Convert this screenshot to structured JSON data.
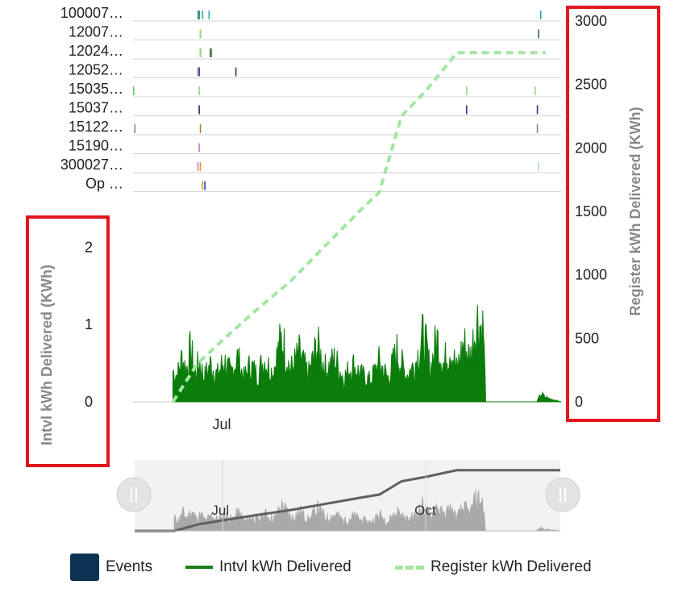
{
  "chart_data": {
    "type": "line",
    "events": {
      "rows": [
        "100007…",
        "12007…",
        "12024…",
        "12052…",
        "15035…",
        "15037…",
        "15122…",
        "15190…",
        "300027…",
        "Op …"
      ],
      "marks": [
        {
          "row": 0,
          "x": "2024-06-20",
          "color": "#3aa6b5"
        },
        {
          "row": 0,
          "x": "2024-06-20",
          "color": "#2e8b57"
        },
        {
          "row": 0,
          "x": "2024-06-21",
          "color": "#3aa6b5"
        },
        {
          "row": 0,
          "x": "2024-06-25",
          "color": "#3aa6b5"
        },
        {
          "row": 0,
          "x": "2024-11-21",
          "color": "#3aa6b5"
        },
        {
          "row": 1,
          "x": "2024-06-20",
          "color": "#2e8b57"
        },
        {
          "row": 1,
          "x": "2024-06-21",
          "color": "#9bd96b"
        },
        {
          "row": 1,
          "x": "2024-11-20",
          "color": "#2e6b2e"
        },
        {
          "row": 2,
          "x": "2024-06-20",
          "color": "#2e6b2e"
        },
        {
          "row": 2,
          "x": "2024-06-21",
          "color": "#9bd96b"
        },
        {
          "row": 2,
          "x": "2024-06-25",
          "color": "#2e6b2e"
        },
        {
          "row": 2,
          "x": "2024-06-25",
          "color": "#888888"
        },
        {
          "row": 3,
          "x": "2024-06-20",
          "color": "#c77fb9"
        },
        {
          "row": 3,
          "x": "2024-06-20",
          "color": "#2a3aa8"
        },
        {
          "row": 3,
          "x": "2024-07-06",
          "color": "#1f5e1f"
        },
        {
          "row": 4,
          "x": "2024-05-22",
          "color": "#66cc66"
        },
        {
          "row": 4,
          "x": "2024-06-20",
          "color": "#9bd96b"
        },
        {
          "row": 4,
          "x": "2024-10-18",
          "color": "#9bd96b"
        },
        {
          "row": 4,
          "x": "2024-11-19",
          "color": "#9bd96b"
        },
        {
          "row": 5,
          "x": "2024-06-20",
          "color": "#1b2a6b"
        },
        {
          "row": 5,
          "x": "2024-10-18",
          "color": "#2a3aa8"
        },
        {
          "row": 5,
          "x": "2024-11-20",
          "color": "#2a3aa8"
        },
        {
          "row": 6,
          "x": "2024-05-22",
          "color": "#888888"
        },
        {
          "row": 6,
          "x": "2024-06-20",
          "color": "#b07a3a"
        },
        {
          "row": 6,
          "x": "2024-11-20",
          "color": "#888888"
        },
        {
          "row": 7,
          "x": "2024-06-20",
          "color": "#c77fb9"
        },
        {
          "row": 8,
          "x": "2024-06-20",
          "color": "#e0a030"
        },
        {
          "row": 8,
          "x": "2024-06-20",
          "color": "#c77fb9"
        },
        {
          "row": 8,
          "x": "2024-11-20",
          "color": "#a8d8e8"
        },
        {
          "row": 9,
          "x": "2024-06-22",
          "color": "#2a3aa8"
        },
        {
          "row": 9,
          "x": "2024-06-22",
          "color": "#e0a030"
        }
      ]
    },
    "left_axis": {
      "title": "Intvl kWh Delivered (KWh)",
      "ticks": [
        0,
        1,
        2
      ],
      "ylim": [
        0,
        2.15
      ]
    },
    "right_axis": {
      "title": "Register kWh Delivered (KWh)",
      "ticks": [
        0,
        500,
        1000,
        1500,
        2000,
        2500,
        3000
      ],
      "ylim": [
        0,
        3000
      ]
    },
    "x_axis": {
      "type": "date",
      "range": [
        "2024-05-22",
        "2024-12-01"
      ],
      "tick_labels": [
        {
          "x": "2024-07-01",
          "label": "Jul"
        }
      ]
    },
    "series": [
      {
        "name": "Intvl kWh Delivered",
        "color": "#0a7d0a",
        "axis": "left",
        "points": [
          {
            "x": "2024-06-09",
            "y": 0.0
          },
          {
            "x": "2024-06-09",
            "y": 0.58
          },
          {
            "x": "2024-06-11",
            "y": 0.5
          },
          {
            "x": "2024-06-13",
            "y": 0.83
          },
          {
            "x": "2024-06-15",
            "y": 0.62
          },
          {
            "x": "2024-06-17",
            "y": 0.98
          },
          {
            "x": "2024-06-19",
            "y": 0.55
          },
          {
            "x": "2024-06-21",
            "y": 0.75
          },
          {
            "x": "2024-06-23",
            "y": 0.45
          },
          {
            "x": "2024-06-26",
            "y": 0.72
          },
          {
            "x": "2024-06-29",
            "y": 0.5
          },
          {
            "x": "2024-07-02",
            "y": 0.78
          },
          {
            "x": "2024-07-05",
            "y": 0.52
          },
          {
            "x": "2024-07-08",
            "y": 0.85
          },
          {
            "x": "2024-07-11",
            "y": 0.45
          },
          {
            "x": "2024-07-14",
            "y": 0.7
          },
          {
            "x": "2024-07-17",
            "y": 0.5
          },
          {
            "x": "2024-07-20",
            "y": 0.8
          },
          {
            "x": "2024-07-24",
            "y": 0.55
          },
          {
            "x": "2024-07-28",
            "y": 1.2
          },
          {
            "x": "2024-08-01",
            "y": 0.6
          },
          {
            "x": "2024-08-05",
            "y": 0.9
          },
          {
            "x": "2024-08-09",
            "y": 0.5
          },
          {
            "x": "2024-08-13",
            "y": 1.05
          },
          {
            "x": "2024-08-17",
            "y": 0.6
          },
          {
            "x": "2024-08-21",
            "y": 0.8
          },
          {
            "x": "2024-08-25",
            "y": 0.45
          },
          {
            "x": "2024-08-29",
            "y": 0.7
          },
          {
            "x": "2024-09-02",
            "y": 0.5
          },
          {
            "x": "2024-09-06",
            "y": 0.4
          },
          {
            "x": "2024-09-10",
            "y": 0.75
          },
          {
            "x": "2024-09-14",
            "y": 0.45
          },
          {
            "x": "2024-09-18",
            "y": 0.95
          },
          {
            "x": "2024-09-22",
            "y": 0.5
          },
          {
            "x": "2024-09-26",
            "y": 0.7
          },
          {
            "x": "2024-09-30",
            "y": 1.25
          },
          {
            "x": "2024-10-03",
            "y": 0.6
          },
          {
            "x": "2024-10-06",
            "y": 1.2
          },
          {
            "x": "2024-10-09",
            "y": 0.7
          },
          {
            "x": "2024-10-12",
            "y": 1.05
          },
          {
            "x": "2024-10-15",
            "y": 0.6
          },
          {
            "x": "2024-10-18",
            "y": 1.1
          },
          {
            "x": "2024-10-21",
            "y": 0.8
          },
          {
            "x": "2024-10-24",
            "y": 1.55
          },
          {
            "x": "2024-10-27",
            "y": 1.35
          },
          {
            "x": "2024-10-28",
            "y": 0.0
          },
          {
            "x": "2024-11-20",
            "y": 0.0
          },
          {
            "x": "2024-11-22",
            "y": 0.15
          },
          {
            "x": "2024-11-24",
            "y": 0.08
          },
          {
            "x": "2024-12-01",
            "y": 0.0
          }
        ]
      },
      {
        "name": "Register kWh Delivered",
        "color": "#a3e6a3",
        "axis": "right",
        "dashed": true,
        "points": [
          {
            "x": "2024-06-09",
            "y": 0
          },
          {
            "x": "2024-06-20",
            "y": 300
          },
          {
            "x": "2024-07-01",
            "y": 480
          },
          {
            "x": "2024-07-15",
            "y": 700
          },
          {
            "x": "2024-08-01",
            "y": 950
          },
          {
            "x": "2024-08-15",
            "y": 1200
          },
          {
            "x": "2024-09-01",
            "y": 1500
          },
          {
            "x": "2024-09-10",
            "y": 1650
          },
          {
            "x": "2024-09-20",
            "y": 2250
          },
          {
            "x": "2024-10-01",
            "y": 2450
          },
          {
            "x": "2024-10-15",
            "y": 2750
          },
          {
            "x": "2024-11-24",
            "y": 2750
          }
        ]
      }
    ],
    "navigator": {
      "tick_labels": [
        {
          "x": "2024-07-01",
          "label": "Jul"
        },
        {
          "x": "2024-10-01",
          "label": "Oct"
        }
      ]
    },
    "legend": {
      "placement": "bottom",
      "items": [
        "Events",
        "Intvl kWh Delivered",
        "Register kWh Delivered"
      ]
    }
  }
}
